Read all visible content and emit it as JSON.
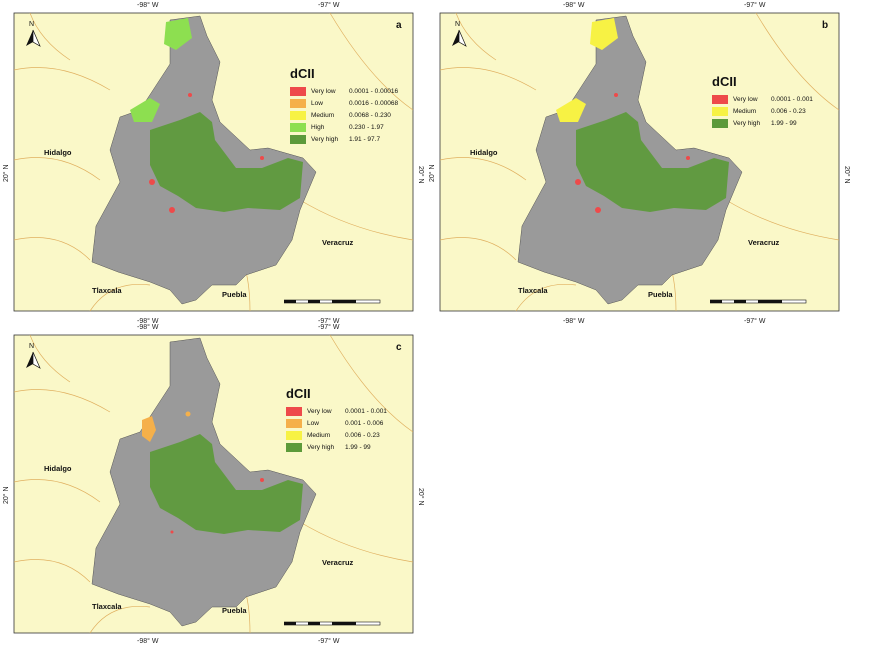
{
  "colors": {
    "background": "#faf8c8",
    "sea": "#faf8c8",
    "terrain": "#9a9a9a",
    "border": "#e0b060",
    "very_low": "#ee4a4a",
    "low": "#f5b04a",
    "medium": "#f7f244",
    "high": "#8ddf50",
    "very_high": "#5c9a3a"
  },
  "north_label": "N",
  "panels": [
    {
      "id": "a",
      "letter": "a",
      "top_ticks": [
        "-98° W",
        "-97° W"
      ],
      "bottom_ticks": [
        "-98° W",
        "-97° W"
      ],
      "left_tick": "20° N",
      "right_tick": "20° N",
      "states": {
        "hidalgo": "Hidalgo",
        "veracruz": "Veracruz",
        "tlaxcala": "Tlaxcala",
        "puebla": "Puebla"
      },
      "legend": {
        "title": "dCII",
        "items": [
          {
            "class": "very_low",
            "label": "Very low",
            "range": "0.0001 - 0.00016"
          },
          {
            "class": "low",
            "label": "Low",
            "range": "0.0016 - 0.00068"
          },
          {
            "class": "medium",
            "label": "Medium",
            "range": "0.0068 - 0.230"
          },
          {
            "class": "high",
            "label": "High",
            "range": "0.230 - 1.97"
          },
          {
            "class": "very_high",
            "label": "Very high",
            "range": "1.91 - 97.7"
          }
        ]
      }
    },
    {
      "id": "b",
      "letter": "b",
      "top_ticks": [
        "-98° W",
        "-97° W"
      ],
      "bottom_ticks": [
        "-98° W",
        "-97° W"
      ],
      "left_tick": "20° N",
      "right_tick": "20° N",
      "states": {
        "hidalgo": "Hidalgo",
        "veracruz": "Veracruz",
        "tlaxcala": "Tlaxcala",
        "puebla": "Puebla"
      },
      "legend": {
        "title": "dCII",
        "items": [
          {
            "class": "very_low",
            "label": "Very low",
            "range": "0.0001 - 0.001"
          },
          {
            "class": "medium",
            "label": "Medium",
            "range": "0.006 - 0.23"
          },
          {
            "class": "very_high",
            "label": "Very high",
            "range": "1.99 - 99"
          }
        ]
      }
    },
    {
      "id": "c",
      "letter": "c",
      "top_ticks": [
        "-98° W",
        "-97° W"
      ],
      "bottom_ticks": [
        "-98° W",
        "-97° W"
      ],
      "left_tick": "20° N",
      "right_tick": "20° N",
      "states": {
        "hidalgo": "Hidalgo",
        "veracruz": "Veracruz",
        "tlaxcala": "Tlaxcala",
        "puebla": "Puebla"
      },
      "legend": {
        "title": "dCII",
        "items": [
          {
            "class": "very_low",
            "label": "Very low",
            "range": "0.0001 - 0.001"
          },
          {
            "class": "low",
            "label": "Low",
            "range": "0.001 - 0.006"
          },
          {
            "class": "medium",
            "label": "Medium",
            "range": "0.006 - 0.23"
          },
          {
            "class": "very_high",
            "label": "Very high",
            "range": "1.99 - 99"
          }
        ]
      }
    }
  ]
}
